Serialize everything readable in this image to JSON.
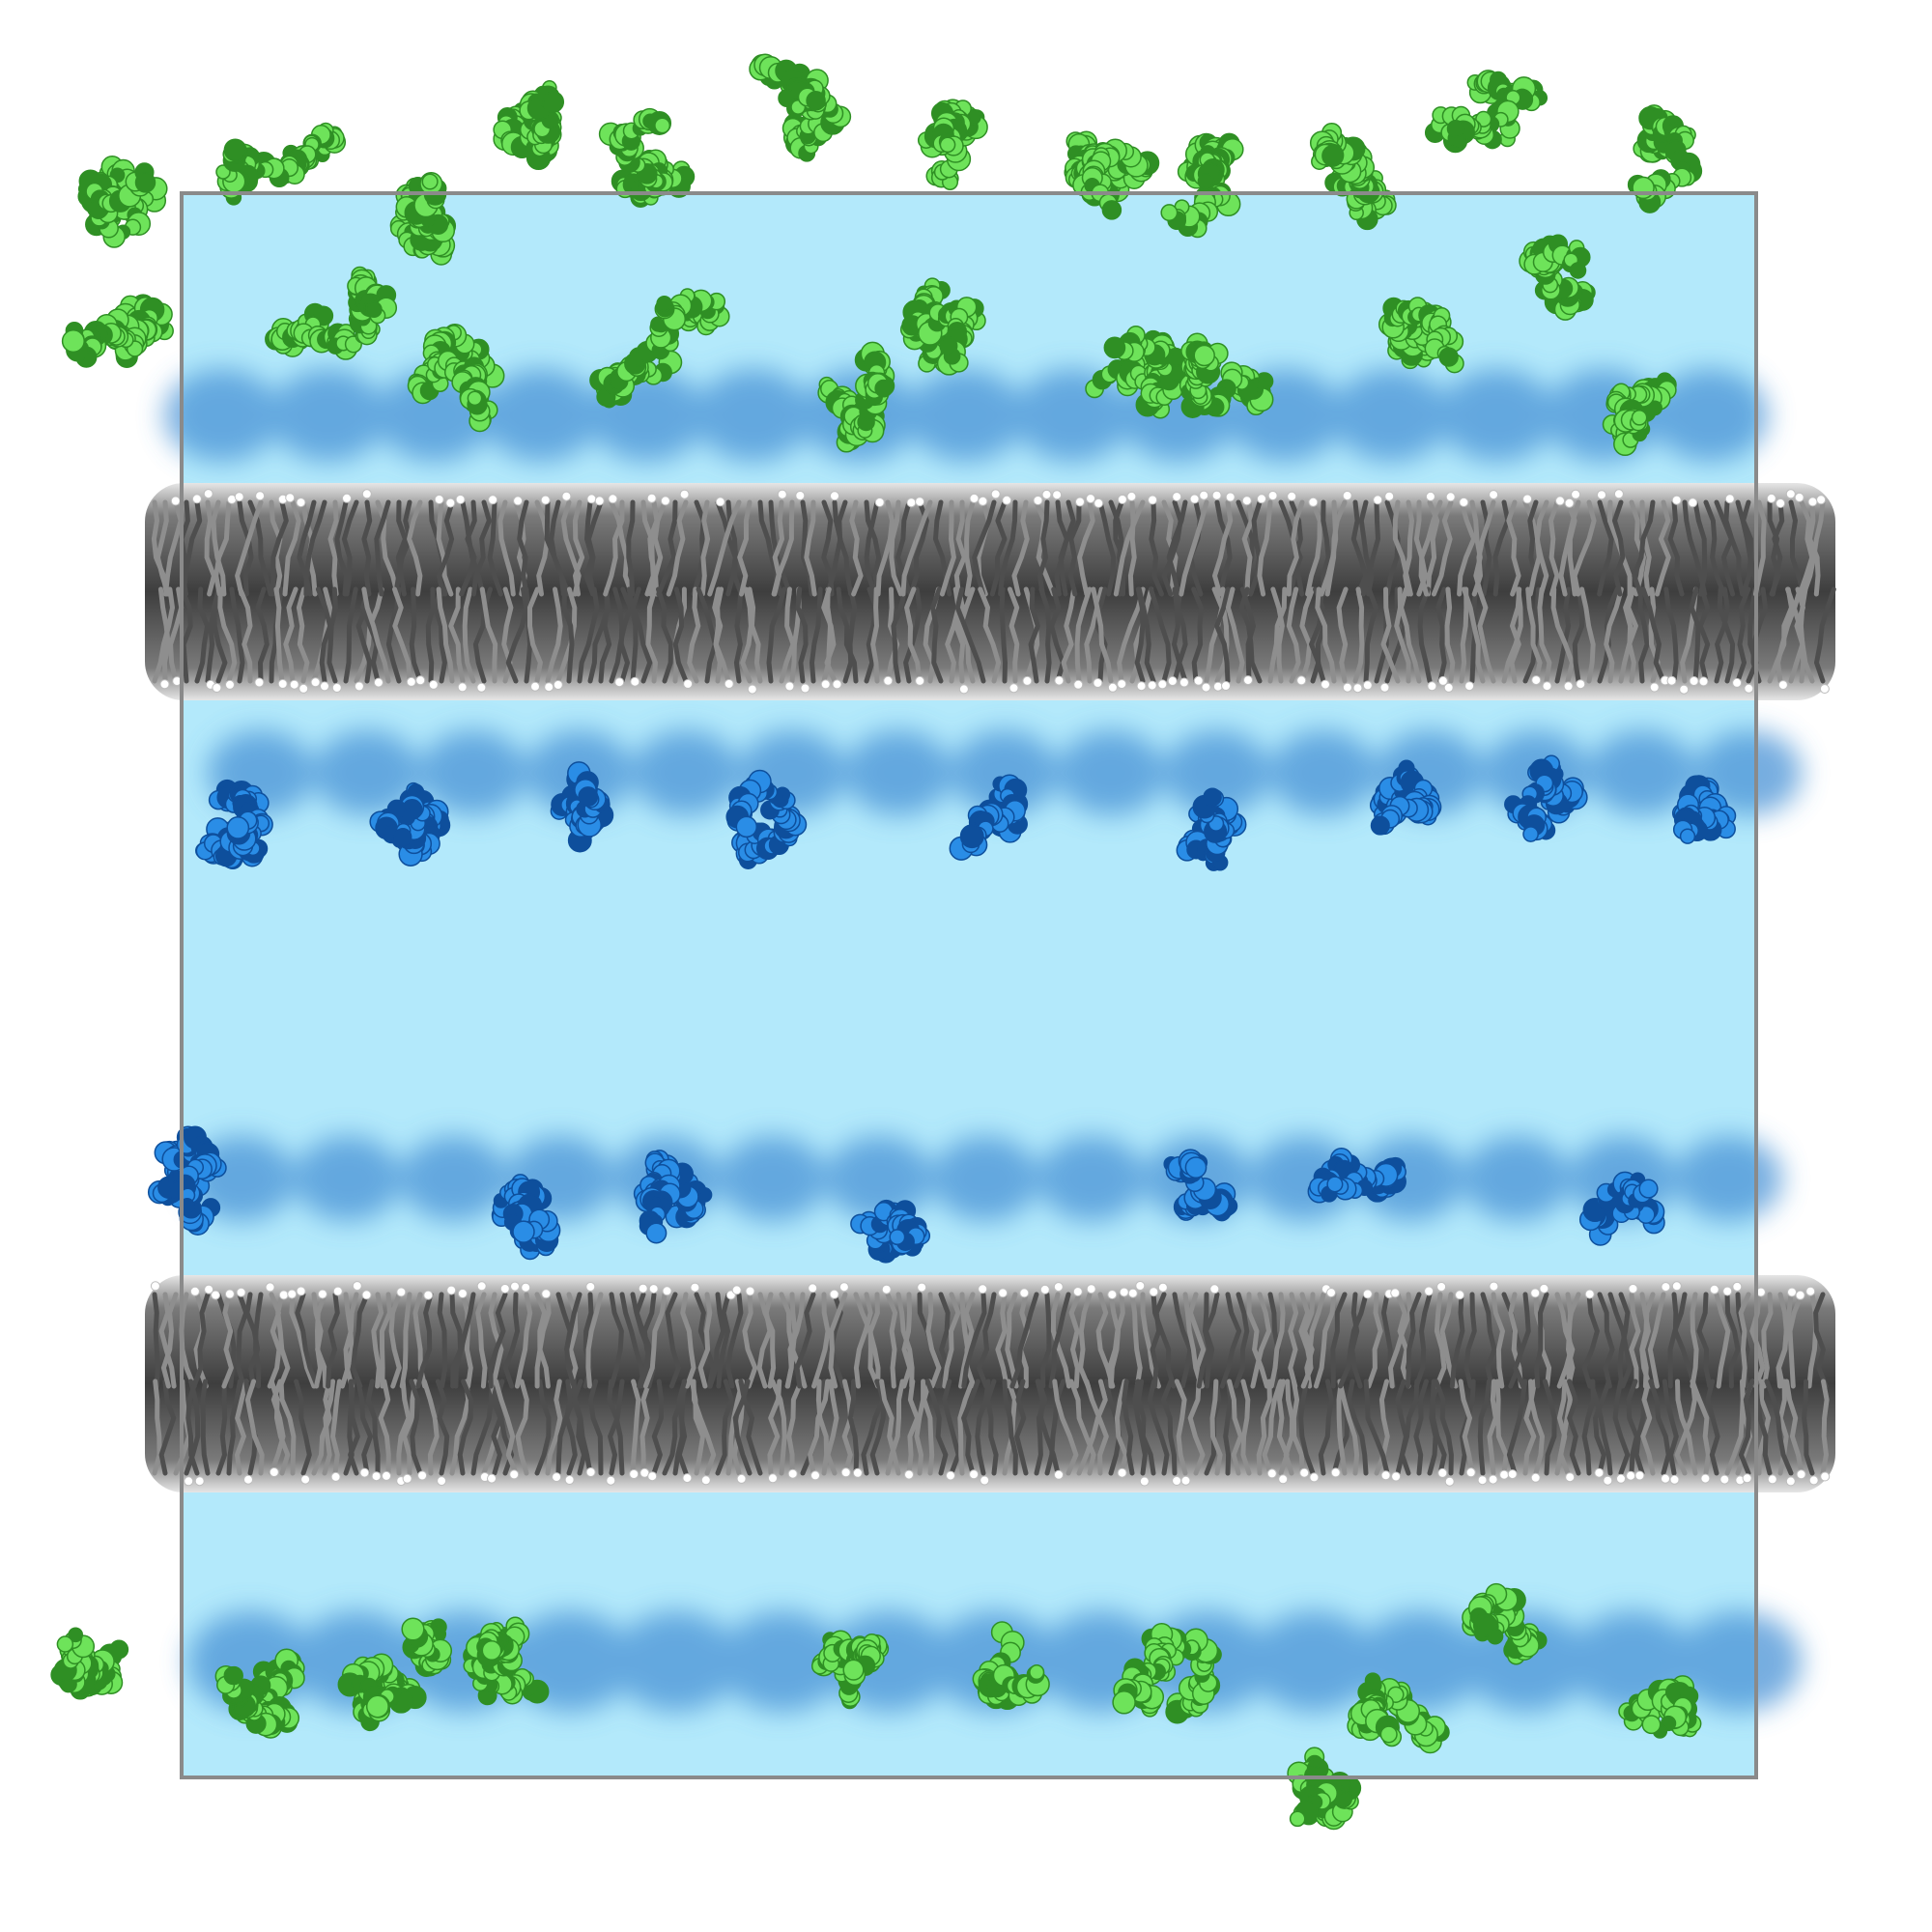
{
  "image": {
    "subject": "membrane-protein-simulation-box",
    "background_color": "#ffffff",
    "colors": {
      "water": "#b3e9fb",
      "water_edge": "#8fcdeb",
      "box_outline": "#8a8a8a",
      "lipid_tail": "#8e8e8e",
      "lipid_tail_dark": "#4e4e4e",
      "lipid_headgroup": "#ffffff",
      "protein_green_light": "#6ee35a",
      "protein_green_dark": "#2f8f24",
      "protein_blue_light": "#2a8de6",
      "protein_blue_dark": "#0e4f9c",
      "shadow_blue": "#4a93d6"
    },
    "components": [
      {
        "name": "water-box",
        "shown": true
      },
      {
        "name": "lipid-bilayer",
        "count": 2
      },
      {
        "name": "green-protein-layer",
        "count": 2
      },
      {
        "name": "blue-protein-layer",
        "count": 2
      }
    ]
  }
}
